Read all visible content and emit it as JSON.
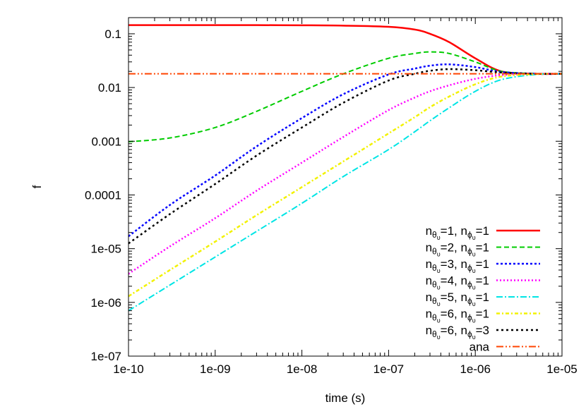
{
  "chart_data": {
    "type": "line",
    "title": "",
    "xlabel": "time (s)",
    "ylabel": "f",
    "xscale": "log",
    "yscale": "log",
    "xlim": [
      1e-10,
      1e-05
    ],
    "ylim": [
      1e-07,
      0.2
    ],
    "x_ticks": [
      "1e-10",
      "1e-09",
      "1e-08",
      "1e-07",
      "1e-06",
      "1e-05"
    ],
    "y_ticks": [
      "1e-07",
      "1e-06",
      "1e-05",
      "0.0001",
      "0.001",
      "0.01",
      "0.1"
    ],
    "grid": false,
    "legend_position": "bottom-right",
    "x": [
      1e-10,
      3e-10,
      1e-09,
      3e-09,
      1e-08,
      3e-08,
      1e-07,
      2e-07,
      3e-07,
      5e-07,
      1e-06,
      2e-06,
      5e-06,
      1e-05
    ],
    "series": [
      {
        "id": "s1",
        "legend": {
          "n1": "n",
          "s1": "θ",
          "ss1": "υ",
          "v1": "=1, ",
          "n2": "n",
          "s2": "ϕ",
          "ss2": "υ",
          "v2": "=1"
        },
        "color": "#ff0000",
        "dash": "",
        "width": 2.5,
        "values": [
          0.145,
          0.145,
          0.145,
          0.145,
          0.144,
          0.142,
          0.135,
          0.12,
          0.1,
          0.07,
          0.035,
          0.02,
          0.018,
          0.018
        ]
      },
      {
        "id": "s2",
        "legend": {
          "n1": "n",
          "s1": "θ",
          "ss1": "υ",
          "v1": "=2, ",
          "n2": "n",
          "s2": "ϕ",
          "ss2": "υ",
          "v2": "=1"
        },
        "color": "#00cc00",
        "dash": "7,4",
        "width": 2,
        "values": [
          0.00098,
          0.00115,
          0.0018,
          0.0036,
          0.0085,
          0.018,
          0.035,
          0.043,
          0.046,
          0.043,
          0.03,
          0.02,
          0.0182,
          0.018
        ]
      },
      {
        "id": "s3",
        "legend": {
          "n1": "n",
          "s1": "θ",
          "ss1": "υ",
          "v1": "=3, ",
          "n2": "n",
          "s2": "ϕ",
          "ss2": "υ",
          "v2": "=1"
        },
        "color": "#0000ff",
        "dash": "3,3",
        "width": 2.5,
        "values": [
          1.7e-05,
          6.5e-05,
          0.00023,
          0.0008,
          0.0027,
          0.0075,
          0.0175,
          0.0225,
          0.0255,
          0.027,
          0.024,
          0.0195,
          0.018,
          0.018
        ]
      },
      {
        "id": "s4",
        "legend": {
          "n1": "n",
          "s1": "θ",
          "ss1": "υ",
          "v1": "=4, ",
          "n2": "n",
          "s2": "ϕ",
          "ss2": "υ",
          "v2": "=1"
        },
        "color": "#ff00ff",
        "dash": "2,3",
        "width": 2.5,
        "values": [
          3.4e-06,
          1.1e-05,
          3.7e-05,
          0.00012,
          0.0004,
          0.0012,
          0.0038,
          0.0065,
          0.0085,
          0.011,
          0.0145,
          0.017,
          0.018,
          0.018
        ]
      },
      {
        "id": "s5",
        "legend": {
          "n1": "n",
          "s1": "θ",
          "ss1": "υ",
          "v1": "=5, ",
          "n2": "n",
          "s2": "ϕ",
          "ss2": "υ",
          "v2": "=1"
        },
        "color": "#00e5e5",
        "dash": "9,3,2,3",
        "width": 2,
        "values": [
          7e-07,
          2.1e-06,
          7e-06,
          2.1e-05,
          7e-05,
          0.00022,
          0.0007,
          0.0015,
          0.0024,
          0.0042,
          0.0085,
          0.014,
          0.0175,
          0.018
        ]
      },
      {
        "id": "s6",
        "legend": {
          "n1": "n",
          "s1": "θ",
          "ss1": "υ",
          "v1": "=6, ",
          "n2": "n",
          "s2": "ϕ",
          "ss2": "υ",
          "v2": "=1"
        },
        "color": "#f2f200",
        "dash": "5,3,2,3",
        "width": 2.5,
        "values": [
          1.3e-06,
          4e-06,
          1.35e-05,
          4.2e-05,
          0.00014,
          0.00042,
          0.0014,
          0.0028,
          0.0043,
          0.0068,
          0.0115,
          0.016,
          0.0178,
          0.018
        ]
      },
      {
        "id": "s7",
        "legend": {
          "n1": "n",
          "s1": "θ",
          "ss1": "υ",
          "v1": "=6, ",
          "n2": "n",
          "s2": "ϕ",
          "ss2": "υ",
          "v2": "=3"
        },
        "color": "#000000",
        "dash": "3,4",
        "width": 2.5,
        "values": [
          1.25e-05,
          4.4e-05,
          0.00016,
          0.00054,
          0.0018,
          0.0052,
          0.0135,
          0.018,
          0.0205,
          0.022,
          0.021,
          0.019,
          0.018,
          0.018
        ]
      },
      {
        "id": "s8",
        "legend_text": "ana",
        "color": "#ff4400",
        "dash": "10,3,2,3,2,3",
        "width": 2,
        "values": [
          0.018,
          0.018,
          0.018,
          0.018,
          0.018,
          0.018,
          0.018,
          0.018,
          0.018,
          0.018,
          0.018,
          0.018,
          0.018,
          0.018
        ]
      }
    ]
  }
}
